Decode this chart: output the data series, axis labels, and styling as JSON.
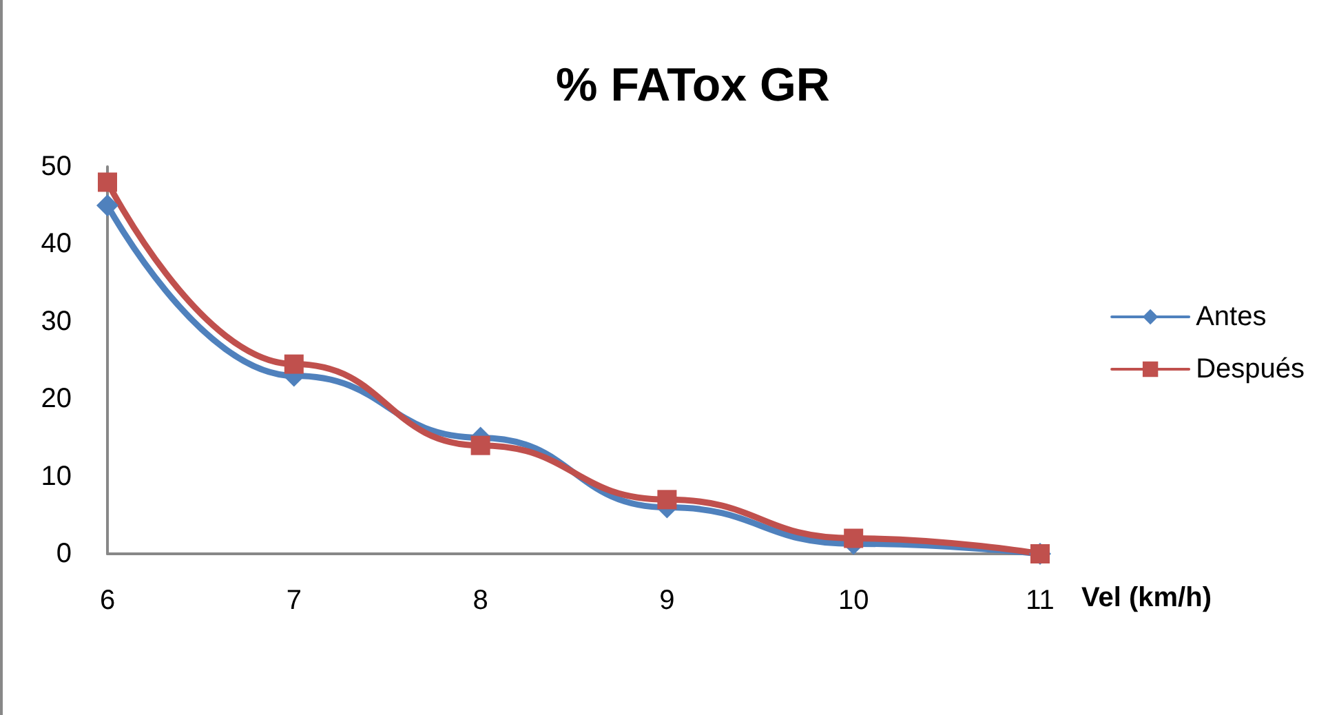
{
  "chart_data": {
    "type": "line",
    "title": "% FATox GR",
    "xlabel": "Vel (km/h)",
    "categories": [
      "6",
      "7",
      "8",
      "9",
      "10",
      "11"
    ],
    "series": [
      {
        "name": "Antes",
        "color": "#4f81bd",
        "marker": "diamond",
        "values": [
          45,
          23,
          15,
          6,
          1.3,
          0
        ]
      },
      {
        "name": "Después",
        "color": "#c0504d",
        "marker": "square",
        "values": [
          48,
          24.5,
          14,
          7,
          2,
          0
        ]
      }
    ],
    "ylim": [
      0,
      50
    ],
    "yticks": [
      0,
      10,
      20,
      30,
      40,
      50
    ],
    "grid": false,
    "legend": "right"
  }
}
